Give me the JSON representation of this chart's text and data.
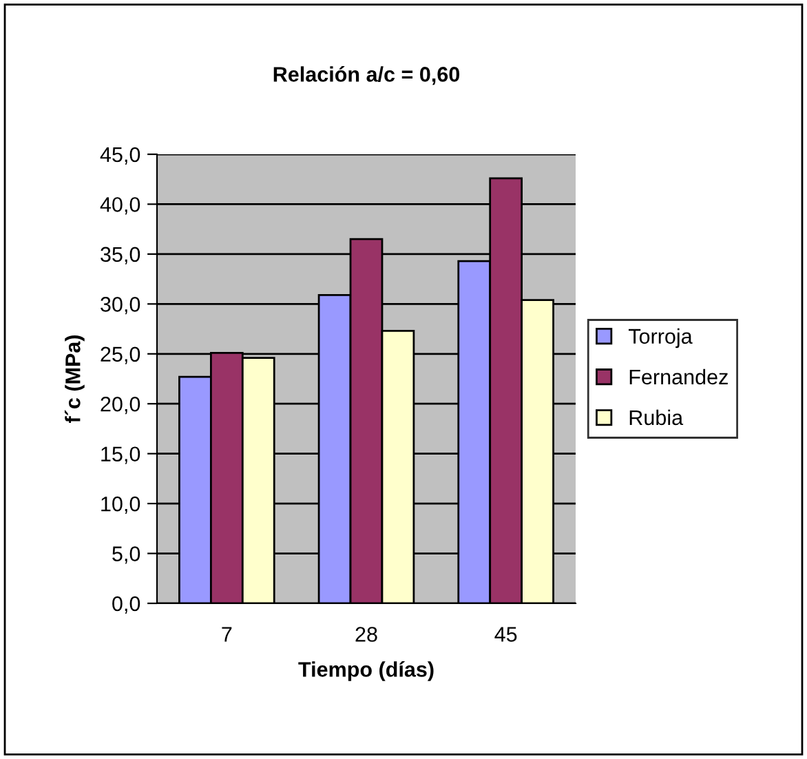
{
  "chart_data": {
    "type": "bar",
    "title": "Relación a/c = 0,60",
    "xlabel": "Tiempo (días)",
    "ylabel": "f´c (MPa)",
    "categories": [
      "7",
      "28",
      "45"
    ],
    "series": [
      {
        "name": "Torroja",
        "color": "#9999ff",
        "values": [
          22.7,
          30.9,
          34.3
        ]
      },
      {
        "name": "Fernandez",
        "color": "#993366",
        "values": [
          25.1,
          36.5,
          42.6
        ]
      },
      {
        "name": "Rubia",
        "color": "#ffffcc",
        "values": [
          24.6,
          27.3,
          30.4
        ]
      }
    ],
    "ylim": [
      0,
      45
    ],
    "yticks": [
      {
        "value": 0,
        "label": "0,0"
      },
      {
        "value": 5,
        "label": "5,0"
      },
      {
        "value": 10,
        "label": "10,0"
      },
      {
        "value": 15,
        "label": "15,0"
      },
      {
        "value": 20,
        "label": "20,0"
      },
      {
        "value": 25,
        "label": "25,0"
      },
      {
        "value": 30,
        "label": "30,0"
      },
      {
        "value": 35,
        "label": "35,0"
      },
      {
        "value": 40,
        "label": "40,0"
      },
      {
        "value": 45,
        "label": "45,0"
      }
    ],
    "grid": "y",
    "legend": "right"
  }
}
